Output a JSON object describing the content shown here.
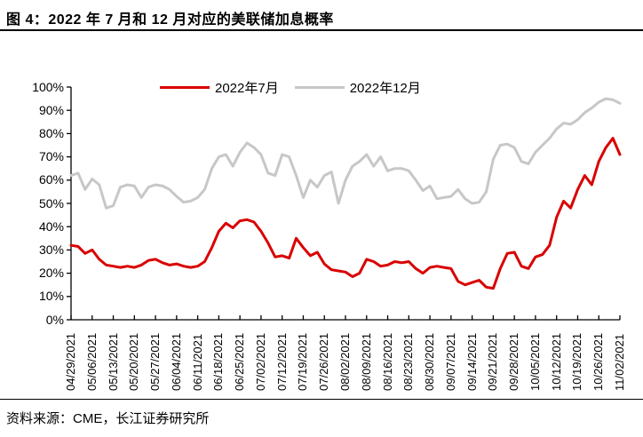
{
  "header": {
    "title": "图 4：2022 年 7 月和 12 月对应的美联储加息概率"
  },
  "footer": {
    "source": "资料来源：CME，长江证券研究所"
  },
  "colors": {
    "axis": "#000000",
    "july_line": "#d90000",
    "december_line": "#c7c7c7"
  },
  "chart_data": {
    "type": "line",
    "title": "2022年7月和12月对应的美联储加息概率",
    "grid": false,
    "legend_position": "top-center",
    "ylabel": "",
    "xlabel": "",
    "ylim": [
      0,
      100
    ],
    "y_tick_step": 10,
    "y_tick_labels": [
      "0%",
      "10%",
      "20%",
      "30%",
      "40%",
      "50%",
      "60%",
      "70%",
      "80%",
      "90%",
      "100%"
    ],
    "categories": [
      "04/29/2021",
      "05/06/2021",
      "05/13/2021",
      "05/20/2021",
      "05/27/2021",
      "06/04/2021",
      "06/11/2021",
      "06/18/2021",
      "06/25/2021",
      "07/02/2021",
      "07/12/2021",
      "07/19/2021",
      "07/26/2021",
      "08/02/2021",
      "08/09/2021",
      "08/16/2021",
      "08/23/2021",
      "08/30/2021",
      "09/07/2021",
      "09/14/2021",
      "09/21/2021",
      "09/28/2021",
      "10/05/2021",
      "10/12/2021",
      "10/19/2021",
      "10/26/2021",
      "11/02/2021"
    ],
    "points_per_category_interval": 3,
    "series": [
      {
        "name": "2022年7月",
        "color": "#d90000",
        "values": [
          32,
          31.5,
          28.5,
          30,
          26,
          23.5,
          23,
          22.5,
          23,
          22.5,
          23.5,
          25.5,
          26,
          24.5,
          23.5,
          24,
          23,
          22.5,
          23,
          25,
          31,
          38,
          41.5,
          39.5,
          42.5,
          43,
          42,
          38,
          33,
          27,
          27.5,
          26.5,
          35,
          31,
          27.5,
          29,
          24,
          21.5,
          21,
          20.5,
          18.5,
          20,
          26,
          25,
          23,
          23.5,
          25,
          24.5,
          25,
          22,
          20,
          22.5,
          23,
          22.5,
          22,
          16.5,
          15,
          16,
          17,
          14,
          13.5,
          22,
          28.5,
          29,
          23,
          22,
          27,
          28,
          32,
          44,
          51,
          48,
          56,
          62,
          58,
          68,
          74,
          78,
          71
        ]
      },
      {
        "name": "2022年12月",
        "color": "#c7c7c7",
        "values": [
          62,
          63,
          56,
          60.5,
          58,
          48,
          49,
          57,
          58,
          57.5,
          52.5,
          57,
          58,
          57.5,
          56,
          53,
          50.5,
          51,
          52.5,
          56,
          65,
          70,
          71,
          66,
          72,
          76,
          74,
          71,
          63,
          62,
          71,
          70,
          62,
          52.5,
          60,
          57,
          62,
          63.5,
          50,
          60,
          66,
          68,
          71,
          66,
          70,
          64,
          65,
          65,
          64,
          60,
          55.5,
          57.5,
          52,
          52.5,
          53,
          56,
          52,
          50,
          50.5,
          55,
          69,
          75,
          75.5,
          74,
          68,
          67,
          72,
          75,
          78,
          82,
          84.5,
          84,
          86,
          89,
          91,
          93.5,
          95,
          94.5,
          93
        ]
      }
    ]
  }
}
